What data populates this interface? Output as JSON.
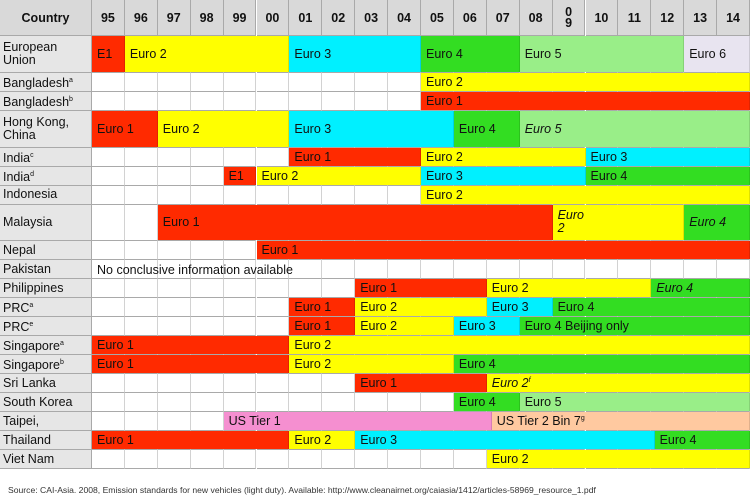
{
  "chart_data": {
    "type": "table",
    "corner_label": "Country",
    "columns": [
      "95",
      "96",
      "97",
      "98",
      "99",
      "00",
      "01",
      "02",
      "03",
      "04",
      "05",
      "06",
      "07",
      "08",
      "0\n9",
      "10",
      "11",
      "12",
      "13",
      "14"
    ],
    "standard_colors": {
      "Euro 1": "#ff2a00",
      "E1": "#ff2a00",
      "Euro 2": "#ffff00",
      "E2": "#ffff00",
      "Euro 3": "#00f0ff",
      "Euro 4": "#33dd22",
      "Euro 5": "#99ee88",
      "Euro 6": "#e8e4f0",
      "Euro 4 Beijing only": "#33dd22",
      "US Tier 1": "#f58fd0",
      "US Tier 2 Bin 7": "#ffc9a0"
    },
    "rows": [
      {
        "country": "European\nUnion",
        "height": 2,
        "periods": [
          {
            "standard": "E1",
            "start": "95",
            "end": "95"
          },
          {
            "standard": "Euro 2",
            "start": "96",
            "end": "00"
          },
          {
            "standard": "Euro 3",
            "start": "01",
            "end": "04"
          },
          {
            "standard": "Euro 4",
            "start": "05",
            "end": "07"
          },
          {
            "standard": "Euro 5",
            "start": "08",
            "end": "12"
          },
          {
            "standard": "Euro 6",
            "start": "13",
            "end": "14"
          }
        ]
      },
      {
        "country": "Bangladesh",
        "sup": "a",
        "height": 1,
        "periods": [
          {
            "standard": "Euro 2",
            "start": "05",
            "end": "14"
          }
        ]
      },
      {
        "country": "Bangladesh",
        "sup": "b",
        "height": 1,
        "periods": [
          {
            "standard": "Euro 1",
            "start": "05",
            "end": "14"
          }
        ]
      },
      {
        "country": "Hong Kong,\nChina",
        "height": 2,
        "periods": [
          {
            "standard": "Euro 1",
            "start": "95",
            "end": "96"
          },
          {
            "standard": "Euro 2",
            "start": "97",
            "end": "00"
          },
          {
            "standard": "Euro 3",
            "start": "01",
            "end": "05"
          },
          {
            "standard": "Euro 4",
            "start": "06",
            "end": "07"
          },
          {
            "standard": "Euro 5",
            "start": "08",
            "end": "14",
            "italic": true
          }
        ]
      },
      {
        "country": "India",
        "sup": "c",
        "height": 1,
        "periods": [
          {
            "standard": "Euro 1",
            "start": "01",
            "end": "04"
          },
          {
            "standard": "Euro 2",
            "start": "05",
            "end": "0\n9"
          },
          {
            "standard": "Euro 3",
            "start": "10",
            "end": "14"
          }
        ]
      },
      {
        "country": "India",
        "sup": "d",
        "height": 1,
        "periods": [
          {
            "standard": "E1",
            "start": "99",
            "end": "99"
          },
          {
            "standard": "Euro 2",
            "start": "00",
            "end": "04"
          },
          {
            "standard": "Euro 3",
            "start": "05",
            "end": "0\n9"
          },
          {
            "standard": "Euro 4",
            "start": "10",
            "end": "14"
          }
        ]
      },
      {
        "country": "Indonesia",
        "height": 1,
        "periods": [
          {
            "standard": "Euro 2",
            "start": "05",
            "end": "14"
          }
        ]
      },
      {
        "country": "Malaysia",
        "height": 2,
        "periods": [
          {
            "standard": "Euro 1",
            "start": "97",
            "end": "08"
          },
          {
            "standard": "Euro\n2",
            "start": "0\n9",
            "end": "12",
            "italic": true
          },
          {
            "standard": "Euro 4",
            "start": "13",
            "end": "14",
            "italic": true
          }
        ]
      },
      {
        "country": "Nepal",
        "height": 1,
        "periods": [
          {
            "standard": "Euro 1",
            "start": "00",
            "end": "14"
          }
        ]
      },
      {
        "country": "Pakistan",
        "height": 1,
        "info": "No conclusive information available",
        "periods": []
      },
      {
        "country": "Philippines",
        "height": 1,
        "periods": [
          {
            "standard": "Euro 1",
            "start": "03",
            "end": "06"
          },
          {
            "standard": "Euro 2",
            "start": "07",
            "end": "11"
          },
          {
            "standard": "Euro 4",
            "start": "12",
            "end": "14",
            "italic": true
          }
        ]
      },
      {
        "country": "PRC",
        "sup": "a",
        "height": 1,
        "periods": [
          {
            "standard": "Euro 1",
            "start": "01",
            "end": "02"
          },
          {
            "standard": "Euro 2",
            "start": "03",
            "end": "06"
          },
          {
            "standard": "Euro 3",
            "start": "07",
            "end": "08"
          },
          {
            "standard": "Euro 4",
            "start": "0\n9",
            "end": "14"
          }
        ]
      },
      {
        "country": "PRC",
        "sup": "e",
        "height": 1,
        "periods": [
          {
            "standard": "Euro 1",
            "start": "01",
            "end": "02"
          },
          {
            "standard": "Euro 2",
            "start": "03",
            "end": "05"
          },
          {
            "standard": "Euro 3",
            "start": "06",
            "end": "07"
          },
          {
            "standard": "Euro 4 Beijing only",
            "start": "08",
            "end": "14"
          }
        ]
      },
      {
        "country": "Singapore",
        "sup": "a",
        "height": 1,
        "periods": [
          {
            "standard": "Euro 1",
            "start": "95",
            "end": "00"
          },
          {
            "standard": "Euro 2",
            "start": "01",
            "end": "14"
          }
        ]
      },
      {
        "country": "Singapore",
        "sup": "b",
        "height": 1,
        "periods": [
          {
            "standard": "Euro 1",
            "start": "95",
            "end": "00"
          },
          {
            "standard": "Euro 2",
            "start": "01",
            "end": "05"
          },
          {
            "standard": "Euro 4",
            "start": "06",
            "end": "14"
          }
        ]
      },
      {
        "country": "Sri Lanka",
        "height": 1,
        "periods": [
          {
            "standard": "Euro 1",
            "start": "03",
            "end": "06"
          },
          {
            "standard": "Euro 2",
            "sup": "f",
            "start": "07",
            "end": "14",
            "italic": true
          }
        ]
      },
      {
        "country": "South Korea",
        "height": 1,
        "periods": [
          {
            "standard": "Euro 4",
            "start": "06",
            "end": "07"
          },
          {
            "standard": "Euro 5",
            "start": "08",
            "end": "14"
          }
        ]
      },
      {
        "country": "Taipei,",
        "height": 1,
        "periods": [
          {
            "standard": "US Tier 1",
            "start": "99",
            "end": "07"
          },
          {
            "standard": "US Tier 2 Bin 7",
            "sup": "g",
            "start": "07",
            "end": "14"
          }
        ]
      },
      {
        "country": "Thailand",
        "height": 1,
        "periods": [
          {
            "standard": "Euro 1",
            "start": "95",
            "end": "00"
          },
          {
            "standard": "Euro 2",
            "start": "01",
            "end": "02"
          },
          {
            "standard": "Euro 3",
            "start": "03",
            "end": "12"
          },
          {
            "standard": "Euro 4",
            "start": "12",
            "end": "14"
          }
        ]
      },
      {
        "country": "Viet Nam",
        "height": 1,
        "periods": [
          {
            "standard": "Euro 2",
            "start": "07",
            "end": "14"
          }
        ]
      }
    ],
    "source_note": "Source: CAI-Asia. 2008, Emission standards for new vehicles (light duty). Available: http://www.cleanairnet.org/caiasia/1412/articles-58969_resource_1.pdf"
  }
}
